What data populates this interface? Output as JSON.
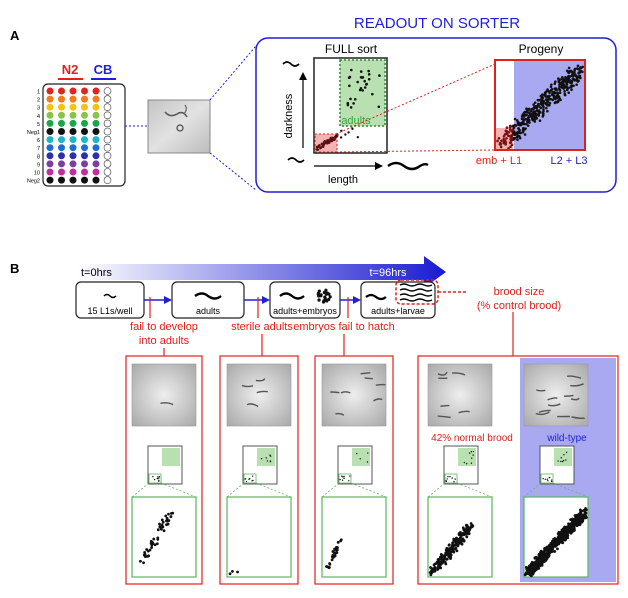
{
  "panel_a": {
    "label": "A",
    "title": "READOUT ON SORTER",
    "plate": {
      "group1": "N2",
      "group2": "CB",
      "rows": [
        "1",
        "2",
        "3",
        "4",
        "5",
        "Neg1",
        "6",
        "7",
        "8",
        "9",
        "10",
        "Neg2"
      ],
      "row_colors": [
        "#e4231f",
        "#f47b20",
        "#f1c40f",
        "#8bc34a",
        "#1aa64a",
        "#111111",
        "#1eb4c9",
        "#1c6fd1",
        "#2f2fa8",
        "#7a3fa0",
        "#c0309b",
        "#111111"
      ]
    },
    "full_sort": {
      "title": "FULL sort",
      "adults_label": "adults",
      "ylabel": "darkness",
      "xlabel": "length"
    },
    "progeny": {
      "title": "Progeny",
      "emb_label": "emb + L1",
      "l2_label": "L2 + L3"
    }
  },
  "panel_b": {
    "label": "B",
    "t_start": "t=0hrs",
    "t_end": "t=96hrs",
    "stages": [
      "15 L1s/well",
      "adults",
      "adults+embryos",
      "adults+larvae"
    ],
    "brood_label_1": "brood size",
    "brood_label_2": "(% control brood)",
    "phenotypes": {
      "fail_develop_1": "fail to develop",
      "fail_develop_2": "into adults",
      "sterile": "sterile adults",
      "hatch": "embryos fail to hatch"
    },
    "normal_brood": "42% normal brood",
    "wild_type": "wild-type"
  },
  "colors": {
    "accent_blue": "#1f1fd6",
    "accent_red": "#e0201b",
    "adult_green": "#b8e0b0",
    "green_border": "#5cb85c",
    "progeny_blue": "#a9a9f2"
  }
}
